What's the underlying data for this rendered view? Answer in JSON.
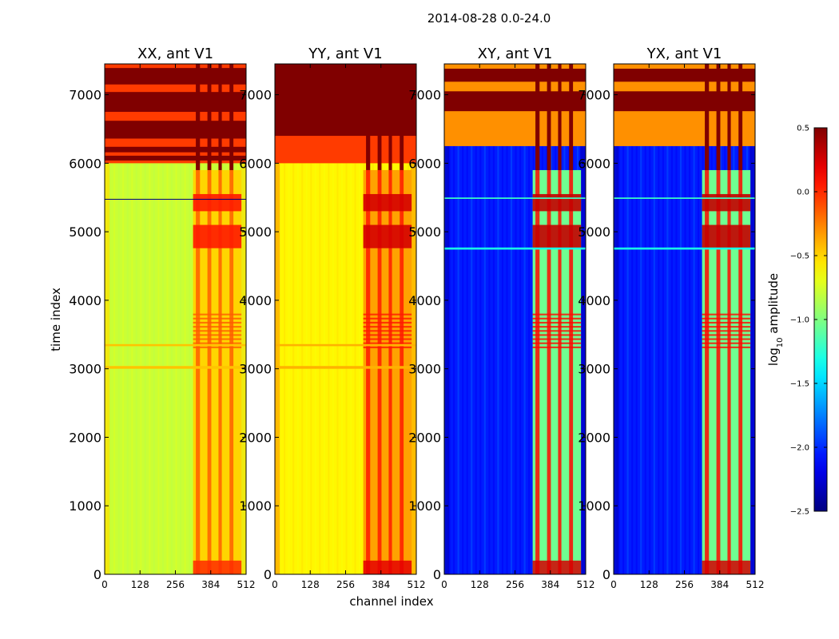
{
  "chart_data": {
    "type": "heatmap",
    "title": "2014-08-28 0.0-24.0",
    "xlabel": "channel index",
    "ylabel": "time index",
    "xlim": [
      0,
      512
    ],
    "ylim": [
      0,
      7450
    ],
    "xticks": [
      0,
      128,
      256,
      384,
      512
    ],
    "yticks": [
      0,
      1000,
      2000,
      3000,
      4000,
      5000,
      6000,
      7000
    ],
    "colormap": "jet",
    "colorbar": {
      "label_prefix": "log",
      "label_sub": "10",
      "label_suffix": " amplitude",
      "range": [
        -2.5,
        0.5
      ],
      "ticks": [
        0.5,
        0.0,
        -0.5,
        -1.0,
        -1.5,
        -2.0,
        -2.5
      ],
      "tick_labels": [
        "0.5",
        "0.0",
        "−0.5",
        "−1.0",
        "−1.5",
        "−2.0",
        "−2.5"
      ]
    },
    "panels": [
      {
        "id": "XX",
        "title": "XX, ant V1",
        "kind": "auto",
        "base_level": -0.78,
        "band_low_level": -0.5,
        "band_high_level": -0.15,
        "saturated_rows": [
          [
            6040,
            6110
          ],
          [
            6160,
            6240
          ],
          [
            6360,
            6620
          ],
          [
            6750,
            7040
          ],
          [
            7150,
            7390
          ]
        ],
        "line_rows": [
          [
            3000,
            3040,
            -0.45
          ],
          [
            3330,
            3360,
            -0.45
          ],
          [
            5470,
            5480,
            -2.5
          ]
        ]
      },
      {
        "id": "YY",
        "title": "YY, ant V1",
        "kind": "auto",
        "base_level": -0.6,
        "band_low_level": -0.35,
        "band_high_level": 0.05,
        "saturated_rows": [
          [
            6400,
            7450
          ]
        ],
        "line_rows": [
          [
            3000,
            3040,
            -0.4
          ],
          [
            3330,
            3360,
            -0.4
          ]
        ]
      },
      {
        "id": "XY",
        "title": "XY, ant V1",
        "kind": "cross",
        "base_level": -2.05,
        "band_low_level": -1.05,
        "band_high_level": 0.1,
        "saturated_rows": [
          [
            6760,
            7050
          ],
          [
            7190,
            7380
          ]
        ],
        "line_rows": [
          [
            4740,
            4770,
            -1.3
          ],
          [
            5480,
            5500,
            -1.2
          ]
        ]
      },
      {
        "id": "YX",
        "title": "YX, ant V1",
        "kind": "cross",
        "base_level": -2.05,
        "band_low_level": -1.05,
        "band_high_level": 0.1,
        "saturated_rows": [
          [
            6760,
            7050
          ],
          [
            7190,
            7380
          ]
        ],
        "line_rows": [
          [
            4740,
            4770,
            -1.3
          ],
          [
            5480,
            5500,
            -1.2
          ]
        ]
      }
    ]
  }
}
